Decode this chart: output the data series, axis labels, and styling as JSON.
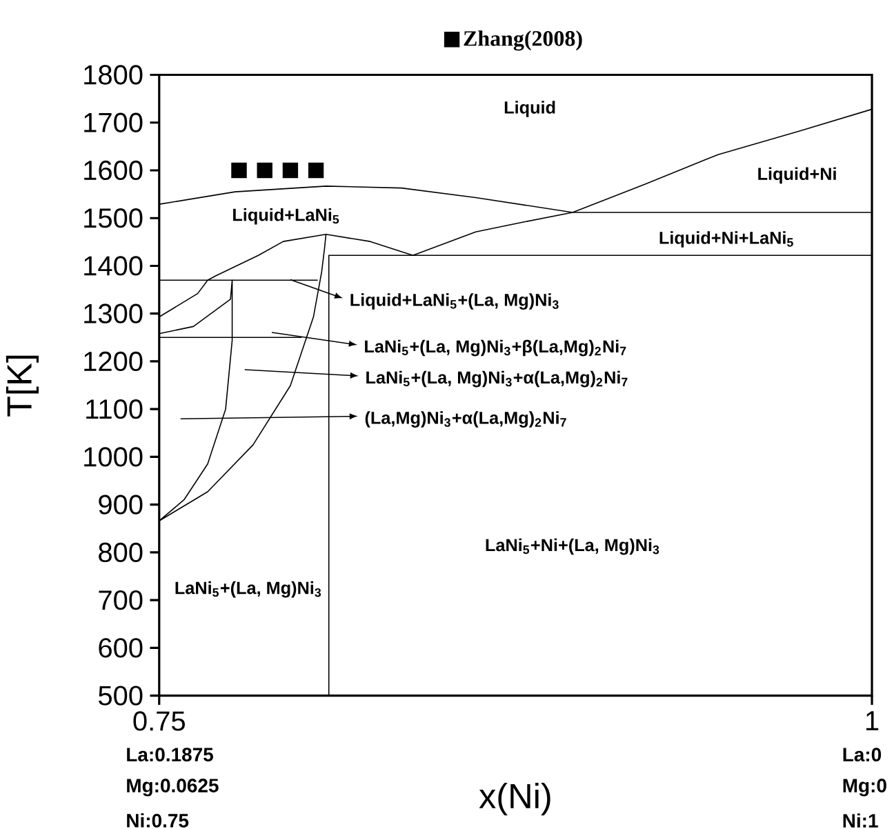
{
  "chart_data": {
    "type": "line",
    "xlabel": "x(Ni)",
    "ylabel": "T[K]",
    "xlim": [
      0.75,
      1
    ],
    "xticks": [
      0.75,
      1
    ],
    "ylim": [
      500,
      1800
    ],
    "yticks": [
      500,
      600,
      700,
      800,
      900,
      1000,
      1100,
      1200,
      1300,
      1400,
      1500,
      1600,
      1700,
      1800
    ],
    "legend": "top",
    "series": [
      {
        "color": "#000000",
        "x": [
          0.75,
          0.7766,
          0.8085,
          0.835,
          0.861,
          0.895,
          1
        ],
        "values": [
          1529,
          1555,
          1567,
          1563,
          1543,
          1512,
          1512
        ]
      },
      {
        "color": "#000000",
        "x": [
          0.75,
          0.7635,
          0.767,
          0.7698,
          0.7848,
          0.7935,
          0.8085,
          0.824,
          0.839,
          0.861,
          0.878,
          0.895,
          0.92,
          0.946,
          0.975,
          1
        ],
        "values": [
          1293,
          1342,
          1370,
          1379,
          1422,
          1451,
          1466,
          1451,
          1422,
          1471,
          1492,
          1512,
          1570,
          1633,
          1683,
          1728
        ]
      },
      {
        "color": "#000000",
        "x": [
          1,
          0.8095,
          0.8095
        ],
        "values": [
          1422,
          1422,
          500
        ]
      },
      {
        "color": "#000000",
        "x": [
          0.75,
          0.8056
        ],
        "values": [
          1370,
          1370
        ]
      },
      {
        "color": "#000000",
        "x": [
          0.75,
          0.8
        ],
        "values": [
          1250,
          1250
        ]
      },
      {
        "color": "#000000",
        "x": [
          0.75,
          0.762,
          0.775,
          0.7756,
          0.7756,
          0.7733,
          0.767,
          0.7587,
          0.75,
          0.767,
          0.7829,
          0.796,
          0.8041,
          0.807,
          0.808,
          0.8085
        ],
        "values": [
          1258,
          1273,
          1330,
          1370,
          1244,
          1100,
          985,
          910,
          866,
          927,
          1025,
          1149,
          1293,
          1388,
          1437,
          1466
        ]
      },
      {
        "type": "scatter",
        "name": "Zhang(2008)",
        "marker": "square",
        "color": "#000000",
        "x": [
          0.778,
          0.787,
          0.796,
          0.805
        ],
        "values": [
          1600,
          1600,
          1600,
          1600
        ]
      }
    ],
    "annotations": [
      "Liquid",
      "Liquid+Ni",
      "Liquid+LaNi$_{5}$",
      "Liquid+Ni+LaNi$_{5}$",
      "LaNi$_{5}$+Ni+(La, Mg)Ni$_{3}$",
      "LaNi$_{5}$+(La, Mg)Ni$_{3}$",
      "Liquid+LaNi$_{5}$+(La, Mg)Ni$_{3}$",
      "LaNi$_{5}$+(La, Mg)Ni$_{3}$+β(La,Mg)$_{2}$Ni$_{7}$",
      "LaNi$_{5}$+(La, Mg)Ni$_{3}$+α(La,Mg)$_{2}$Ni$_{7}$",
      "(La,Mg)Ni$_{3}$+α(La,Mg)$_{2}$Ni$_{7}$",
      "La:0.1875",
      "Mg:0.0625",
      "Ni:0.75",
      "La:0",
      "Mg:0",
      "Ni:1"
    ]
  }
}
